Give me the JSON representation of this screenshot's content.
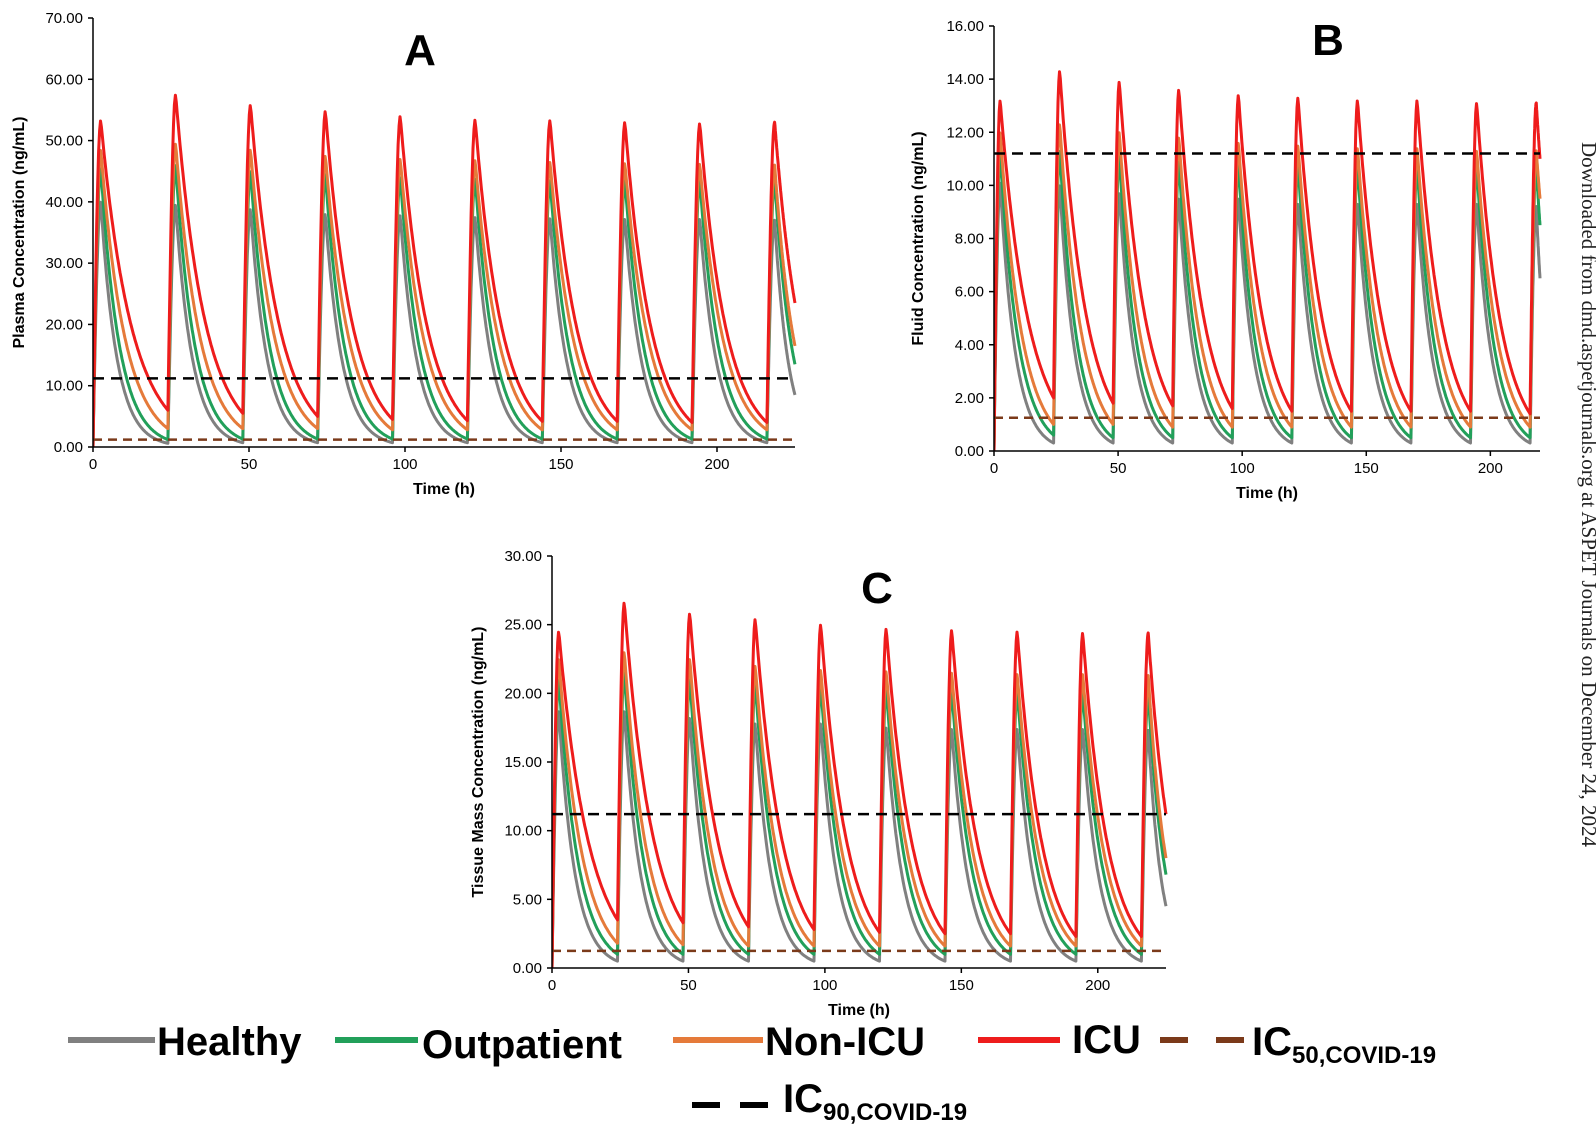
{
  "chart_data": [
    {
      "type": "line",
      "panel": "A",
      "xlabel": "Time (h)",
      "ylabel": "Plasma Concentration (ng/mL)",
      "xlim": [
        0,
        225
      ],
      "ylim": [
        0,
        70
      ],
      "xticks": [
        "0",
        "50",
        "100",
        "150",
        "200"
      ],
      "yticks": [
        "0.00",
        "10.00",
        "20.00",
        "30.00",
        "40.00",
        "50.00",
        "60.00",
        "70.00"
      ],
      "dose_times": [
        0,
        24,
        48,
        72,
        96,
        120,
        144,
        168,
        192,
        216
      ],
      "end_time": 225,
      "series": [
        {
          "name": "Healthy",
          "color": "#808080",
          "tmax": 2.5,
          "peaks": [
            40,
            39.5,
            38.8,
            38,
            37.8,
            37.5,
            37.3,
            37.2,
            37.2,
            37
          ],
          "troughs": [
            0.6,
            0.7,
            0.7,
            0.7,
            0.7,
            0.7,
            0.7,
            0.7,
            0.7
          ],
          "final": 8.5
        },
        {
          "name": "Outpatient",
          "color": "#22a05a",
          "tmax": 2.5,
          "peaks": [
            45.5,
            46,
            45,
            44.5,
            44,
            43.8,
            43.5,
            43.5,
            43.5,
            43.5
          ],
          "troughs": [
            1.2,
            1.3,
            1.3,
            1.3,
            1.3,
            1.3,
            1.3,
            1.3,
            1.3
          ],
          "final": 13.5
        },
        {
          "name": "Non-ICU",
          "color": "#e57a3a",
          "tmax": 2.5,
          "peaks": [
            48.5,
            49.5,
            48.5,
            47.5,
            47,
            46.8,
            46.5,
            46.3,
            46.2,
            46
          ],
          "troughs": [
            3,
            3,
            3,
            2.8,
            2.8,
            2.8,
            2.8,
            2.8,
            2.8
          ],
          "final": 16.5
        },
        {
          "name": "ICU",
          "color": "#ee1c1c",
          "tmax": 2.5,
          "peaks": [
            53.3,
            57.5,
            55.8,
            54.8,
            54,
            53.4,
            53.3,
            53,
            52.8,
            53
          ],
          "troughs": [
            6,
            5.5,
            5,
            4.5,
            4.3,
            4.2,
            4.2,
            4,
            4
          ],
          "final": 23.5
        }
      ],
      "ic50": 1.2,
      "ic90": 11.2
    },
    {
      "type": "line",
      "panel": "B",
      "xlabel": "Time (h)",
      "ylabel": "Fluid Concentration (ng/mL)",
      "xlim": [
        0,
        220
      ],
      "ylim": [
        0,
        16
      ],
      "xticks": [
        "0",
        "50",
        "100",
        "150",
        "200"
      ],
      "yticks": [
        "0.00",
        "2.00",
        "4.00",
        "6.00",
        "8.00",
        "10.00",
        "12.00",
        "14.00",
        "16.00"
      ],
      "dose_times": [
        0,
        24,
        48,
        72,
        96,
        120,
        144,
        168,
        192,
        216
      ],
      "end_time": 220,
      "series": [
        {
          "name": "Healthy",
          "color": "#808080",
          "tmax": 2.5,
          "peaks": [
            10.1,
            10,
            9.7,
            9.5,
            9.5,
            9.3,
            9.3,
            9.3,
            9.3,
            9.2
          ],
          "troughs": [
            0.3,
            0.3,
            0.3,
            0.3,
            0.3,
            0.3,
            0.3,
            0.3,
            0.3
          ],
          "final": 6.5
        },
        {
          "name": "Outpatient",
          "color": "#22a05a",
          "tmax": 2.5,
          "peaks": [
            11.2,
            11.3,
            11.1,
            10.9,
            10.8,
            10.8,
            10.7,
            10.7,
            10.7,
            10.7
          ],
          "troughs": [
            0.6,
            0.5,
            0.5,
            0.5,
            0.5,
            0.5,
            0.5,
            0.5,
            0.5
          ],
          "final": 8.5
        },
        {
          "name": "Non-ICU",
          "color": "#e57a3a",
          "tmax": 2.5,
          "peaks": [
            12,
            12.3,
            12,
            11.8,
            11.6,
            11.5,
            11.4,
            11.4,
            11.3,
            11.3
          ],
          "troughs": [
            1,
            1,
            0.9,
            0.9,
            0.9,
            0.9,
            0.9,
            0.9,
            0.9
          ],
          "final": 9.5
        },
        {
          "name": "ICU",
          "color": "#ee1c1c",
          "tmax": 2.5,
          "peaks": [
            13.2,
            14.3,
            13.9,
            13.6,
            13.4,
            13.3,
            13.2,
            13.2,
            13.1,
            13.1
          ],
          "troughs": [
            2,
            1.8,
            1.7,
            1.6,
            1.5,
            1.5,
            1.5,
            1.5,
            1.4
          ],
          "final": 11
        }
      ],
      "ic50": 1.25,
      "ic90": 11.2
    },
    {
      "type": "line",
      "panel": "C",
      "xlabel": "Time (h)",
      "ylabel": "Tissue Mass Concentration (ng/mL)",
      "xlim": [
        0,
        225
      ],
      "ylim": [
        0,
        30
      ],
      "xticks": [
        "0",
        "50",
        "100",
        "150",
        "200"
      ],
      "yticks": [
        "0.00",
        "5.00",
        "10.00",
        "15.00",
        "20.00",
        "25.00",
        "30.00"
      ],
      "dose_times": [
        0,
        24,
        48,
        72,
        96,
        120,
        144,
        168,
        192,
        216
      ],
      "end_time": 225,
      "series": [
        {
          "name": "Healthy",
          "color": "#808080",
          "tmax": 2.5,
          "peaks": [
            18.7,
            18.7,
            18.2,
            17.8,
            17.8,
            17.5,
            17.4,
            17.4,
            17.4,
            17.3
          ],
          "troughs": [
            0.5,
            0.5,
            0.5,
            0.5,
            0.5,
            0.5,
            0.5,
            0.5,
            0.5
          ],
          "final": 4.5
        },
        {
          "name": "Outpatient",
          "color": "#22a05a",
          "tmax": 2.5,
          "peaks": [
            21,
            21.5,
            21,
            20.7,
            20.5,
            20.3,
            20.2,
            20.2,
            20.1,
            20
          ],
          "troughs": [
            1,
            1,
            1,
            1,
            1,
            1,
            1,
            1,
            1
          ],
          "final": 6.8
        },
        {
          "name": "Non-ICU",
          "color": "#e57a3a",
          "tmax": 2.5,
          "peaks": [
            22.5,
            23,
            22.5,
            22,
            21.7,
            21.6,
            21.5,
            21.4,
            21.4,
            21.3
          ],
          "troughs": [
            1.8,
            1.7,
            1.6,
            1.6,
            1.6,
            1.6,
            1.6,
            1.6,
            1.6
          ],
          "final": 8
        },
        {
          "name": "ICU",
          "color": "#ee1c1c",
          "tmax": 2.5,
          "peaks": [
            24.5,
            26.6,
            25.8,
            25.4,
            25,
            24.7,
            24.6,
            24.5,
            24.4,
            24.4
          ],
          "troughs": [
            3.5,
            3.3,
            3,
            2.8,
            2.6,
            2.5,
            2.5,
            2.3,
            2.3
          ],
          "final": 11.2
        }
      ],
      "ic50": 1.25,
      "ic90": 11.2
    }
  ],
  "colors": {
    "healthy": "#808080",
    "outpatient": "#22a05a",
    "non_icu": "#e57a3a",
    "icu": "#ee1c1c",
    "ic50": "#7b3a1a",
    "ic90": "#000000"
  },
  "legend": {
    "items": [
      {
        "label": "Healthy",
        "color": "#808080",
        "dashed": false
      },
      {
        "label": "Outpatient",
        "color": "#22a05a",
        "dashed": false
      },
      {
        "label": "Non-ICU",
        "color": "#e57a3a",
        "dashed": false
      },
      {
        "label": "ICU",
        "color": "#ee1c1c",
        "dashed": false
      }
    ],
    "ic50": {
      "main": "IC",
      "sub": "50,COVID-19"
    },
    "ic90": {
      "main": "IC",
      "sub": "90,COVID-19"
    }
  },
  "watermark": "Downloaded from dmd.aspetjournals.org at ASPET Journals on December 24, 2024"
}
